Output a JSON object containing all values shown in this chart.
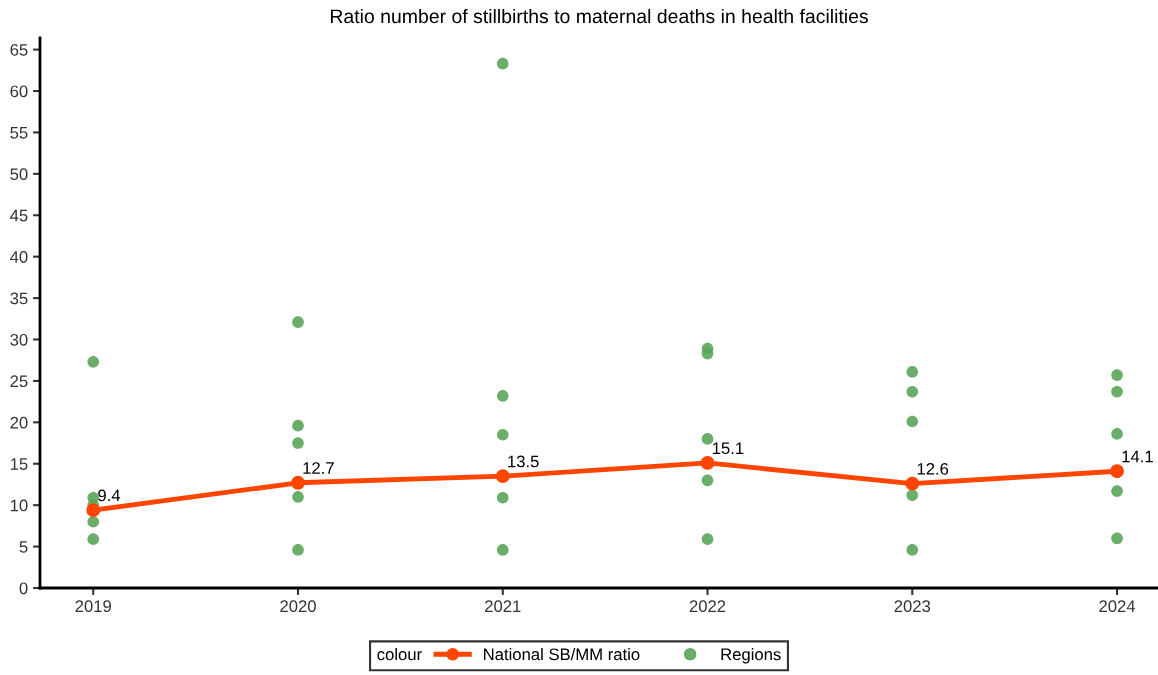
{
  "chart_data": {
    "type": "line",
    "title": "Ratio number of stillbirths to maternal deaths in health facilities",
    "x": [
      2019,
      2020,
      2021,
      2022,
      2023,
      2024
    ],
    "series": [
      {
        "name": "National SB/MM ratio",
        "color": "#ff4500",
        "marker": "circle",
        "values": [
          9.4,
          12.7,
          13.5,
          15.1,
          12.6,
          14.1
        ],
        "value_labels": [
          "9.4",
          "12.7",
          "13.5",
          "15.1",
          "12.6",
          "14.1"
        ]
      },
      {
        "name": "Regions",
        "type": "scatter",
        "color": "#5aa55a",
        "x": [
          2019,
          2019,
          2019,
          2019,
          2019,
          2020,
          2020,
          2020,
          2020,
          2020,
          2021,
          2021,
          2021,
          2021,
          2021,
          2022,
          2022,
          2022,
          2022,
          2022,
          2023,
          2023,
          2023,
          2023,
          2023,
          2024,
          2024,
          2024,
          2024,
          2024
        ],
        "values": [
          27.3,
          10.9,
          10.0,
          8.0,
          5.9,
          32.1,
          19.6,
          17.5,
          11.0,
          4.6,
          63.3,
          23.2,
          18.5,
          10.9,
          4.6,
          28.9,
          28.3,
          18.0,
          13.0,
          5.9,
          26.1,
          23.7,
          20.1,
          11.2,
          4.6,
          25.7,
          23.7,
          18.6,
          11.7,
          6.0
        ]
      }
    ],
    "xlim": [
      2018.74,
      2024.2
    ],
    "xticks": [
      2019,
      2020,
      2021,
      2022,
      2023,
      2024
    ],
    "ylim": [
      0,
      66.4
    ],
    "yticks": [
      0,
      5,
      10,
      15,
      20,
      25,
      30,
      35,
      40,
      45,
      50,
      55,
      60,
      65
    ],
    "legend": "bottom",
    "legend_title": "colour",
    "grid": false
  }
}
